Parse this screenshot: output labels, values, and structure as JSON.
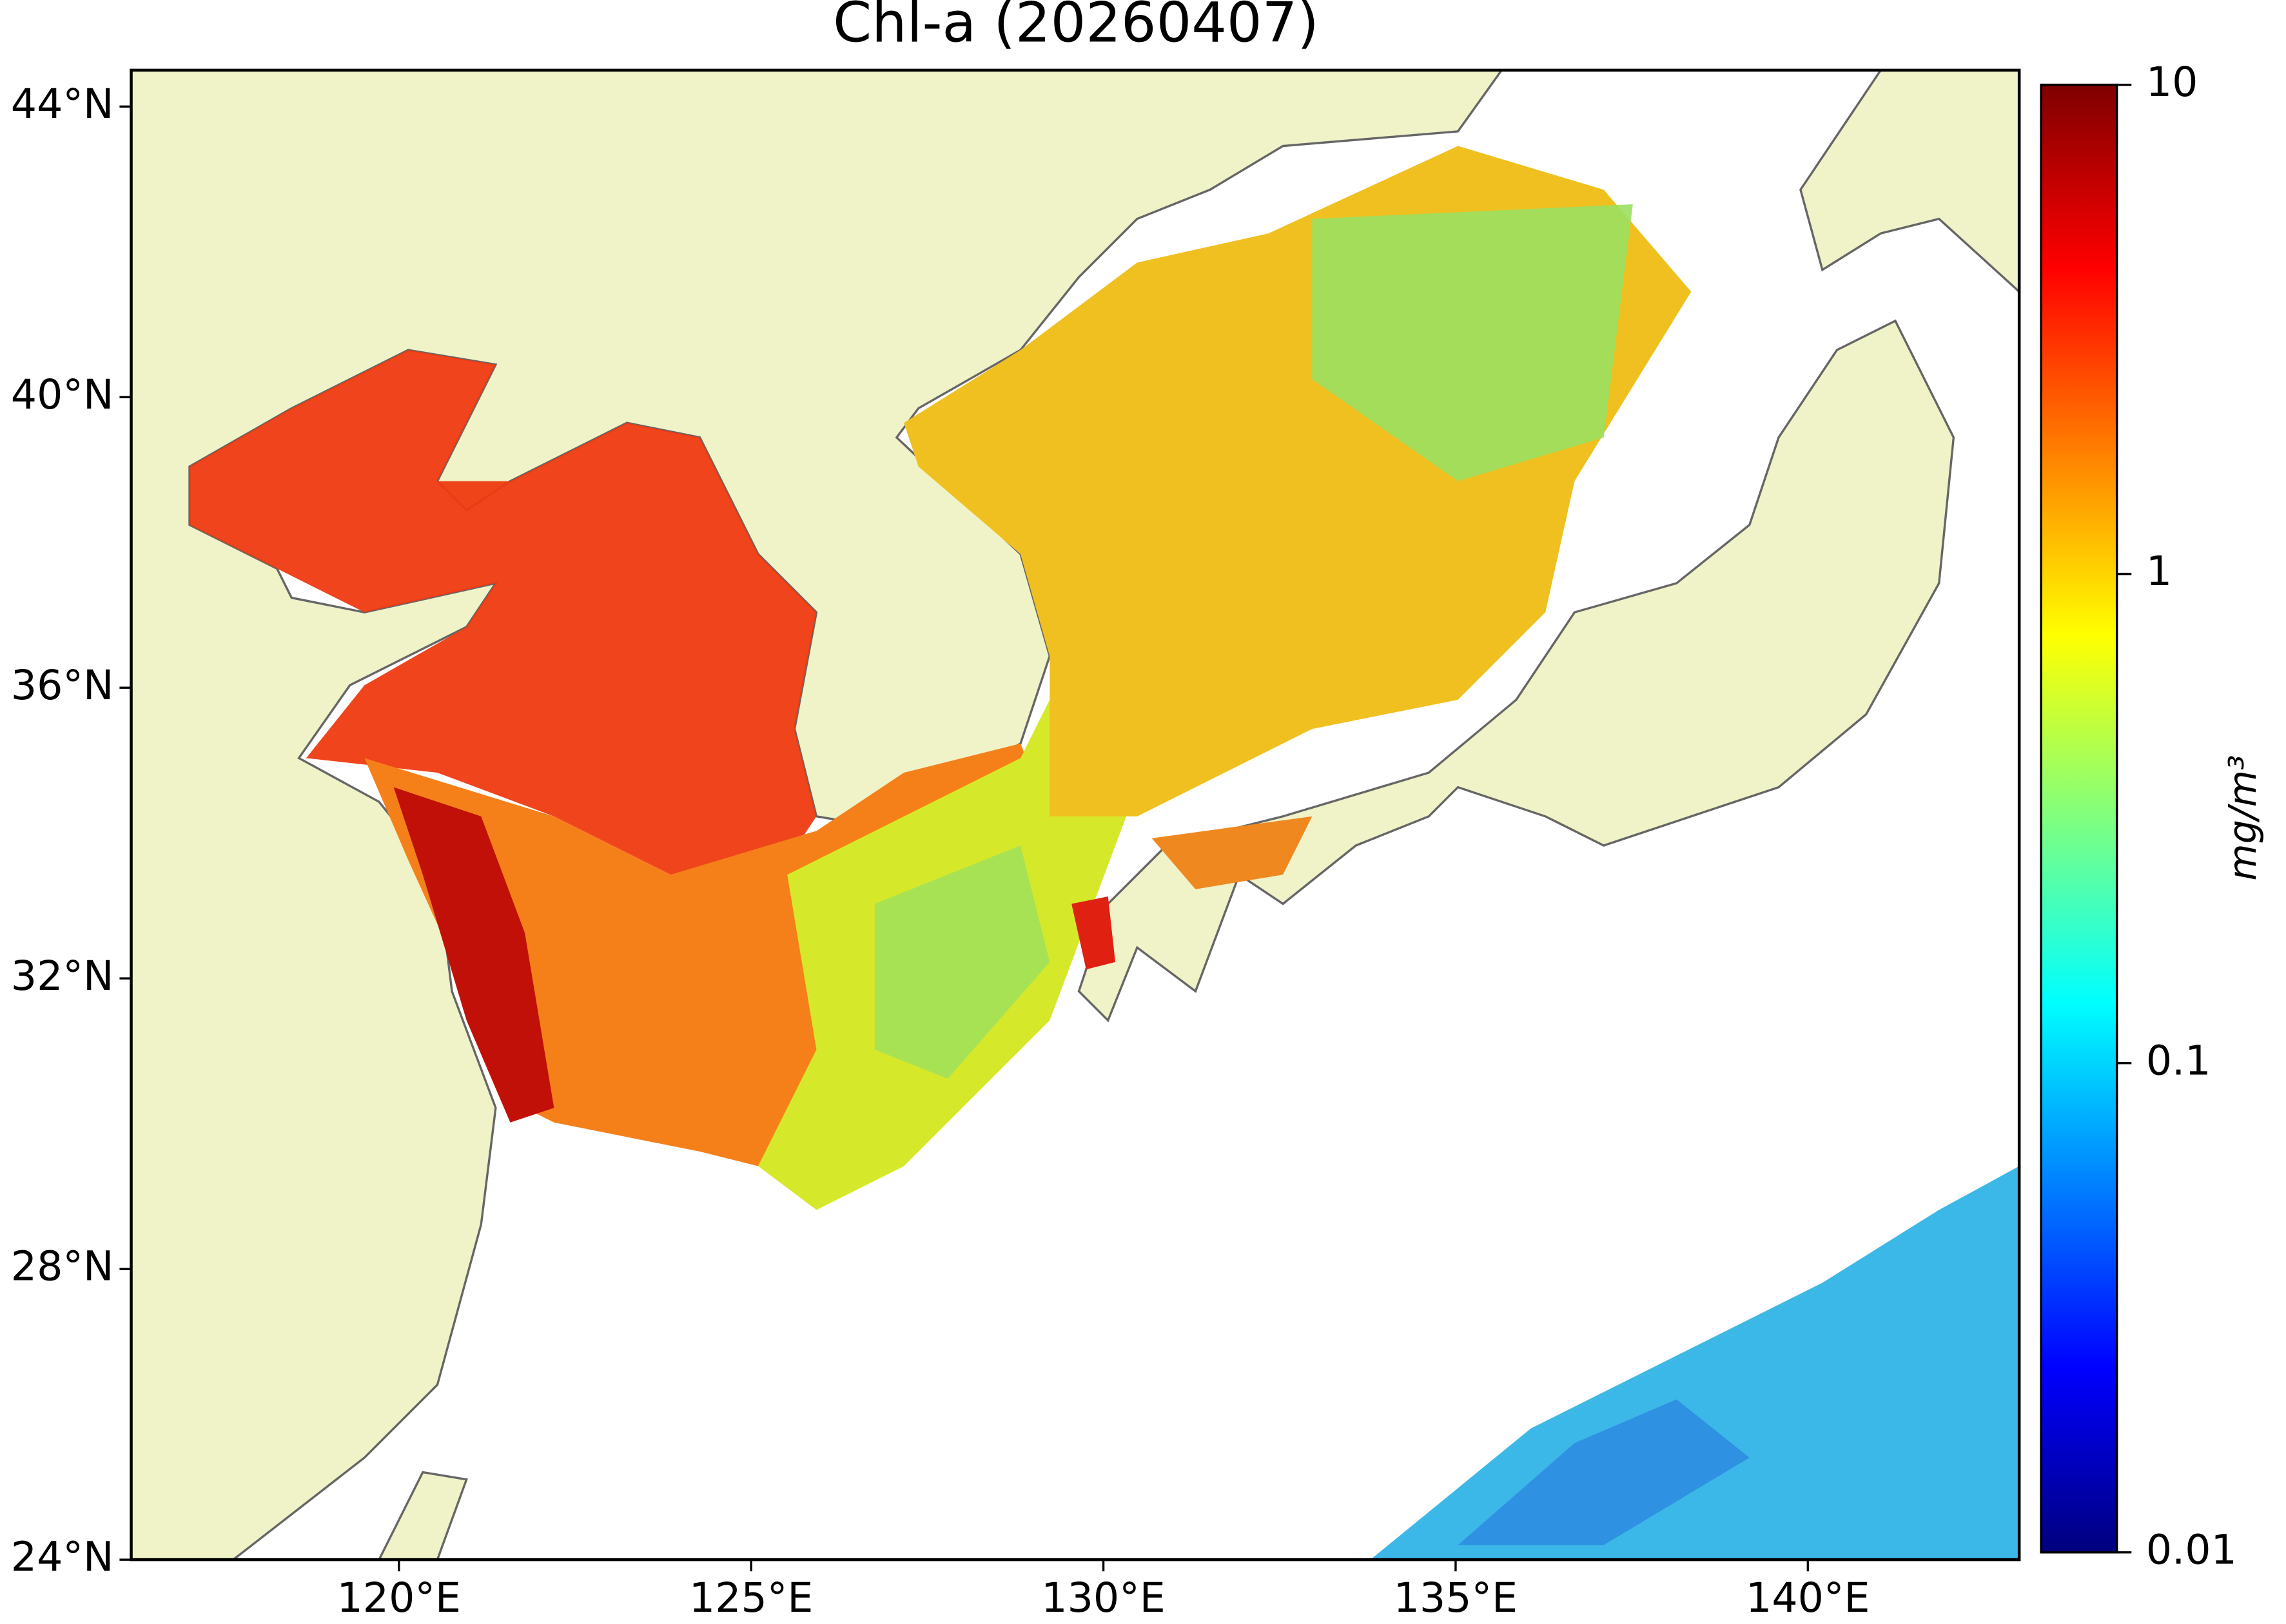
{
  "chart_data": {
    "type": "map",
    "title": "Chl-a (20260407)",
    "xlim": [
      116.2,
      143
    ],
    "ylim": [
      24,
      44.5
    ],
    "xticks": [
      {
        "value": 120,
        "label": "120°E"
      },
      {
        "value": 125,
        "label": "125°E"
      },
      {
        "value": 130,
        "label": "130°E"
      },
      {
        "value": 135,
        "label": "135°E"
      },
      {
        "value": 140,
        "label": "140°E"
      }
    ],
    "yticks": [
      {
        "value": 24,
        "label": "24°N"
      },
      {
        "value": 28,
        "label": "28°N"
      },
      {
        "value": 32,
        "label": "32°N"
      },
      {
        "value": 36,
        "label": "36°N"
      },
      {
        "value": 40,
        "label": "40°N"
      },
      {
        "value": 44,
        "label": "44°N"
      }
    ],
    "colorbar": {
      "label": "mg/m³",
      "scale": "log",
      "lim": [
        0.01,
        10
      ],
      "ticks": [
        {
          "value": 0.01,
          "label": "0.01"
        },
        {
          "value": 0.1,
          "label": "0.1"
        },
        {
          "value": 1,
          "label": "1"
        },
        {
          "value": 10,
          "label": "10"
        }
      ]
    }
  }
}
